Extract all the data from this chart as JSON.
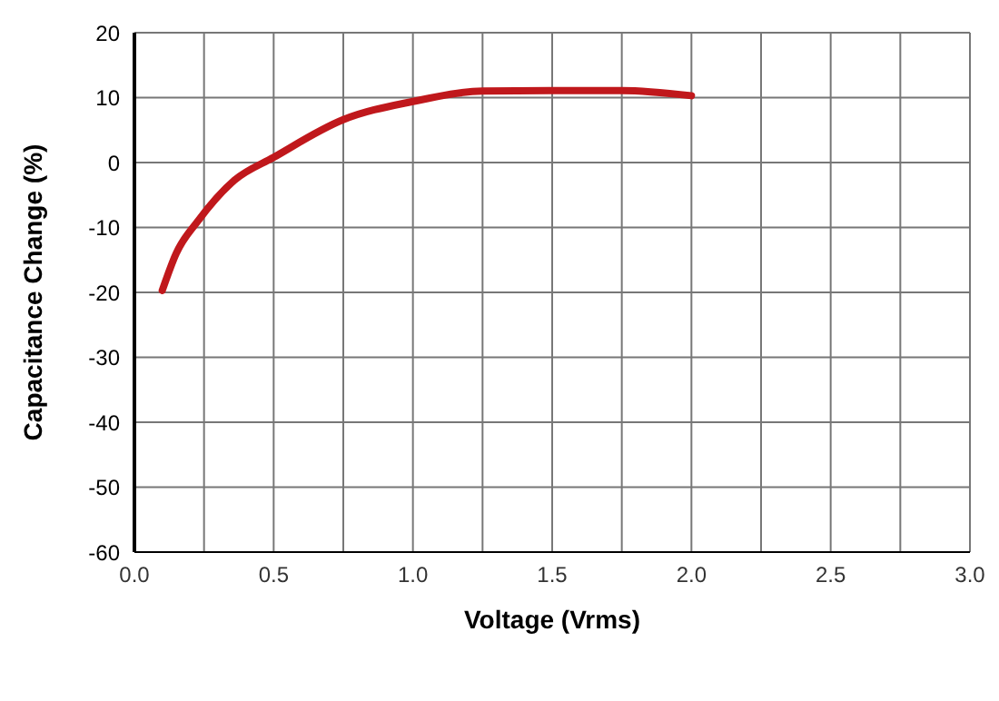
{
  "chart_data": {
    "type": "line",
    "xlabel": "Voltage (Vrms)",
    "ylabel": "Capacitance Change (%)",
    "x": [
      0.1,
      0.15,
      0.23,
      0.36,
      0.5,
      0.75,
      1.0,
      1.25,
      1.5,
      1.75,
      2.0
    ],
    "series": [
      {
        "color": "#c0181c",
        "values": [
          -19.7,
          -14,
          -8.9,
          -2.7,
          0.8,
          6.6,
          9.4,
          11.0,
          11.1,
          11.1,
          10.3
        ]
      }
    ],
    "xlim": [
      0,
      3
    ],
    "xticks": [
      {
        "value": 0,
        "label": "0.0"
      },
      {
        "value": 0.25,
        "label": null
      },
      {
        "value": 0.5,
        "label": "0.5"
      },
      {
        "value": 0.75,
        "label": null
      },
      {
        "value": 1,
        "label": "1.0"
      },
      {
        "value": 1.25,
        "label": null
      },
      {
        "value": 1.5,
        "label": "1.5"
      },
      {
        "value": 1.75,
        "label": null
      },
      {
        "value": 2,
        "label": "2.0"
      },
      {
        "value": 2.25,
        "label": null
      },
      {
        "value": 2.5,
        "label": "2.5"
      },
      {
        "value": 2.75,
        "label": null
      },
      {
        "value": 3,
        "label": "3.0"
      }
    ],
    "ylim": [
      -60,
      20
    ],
    "yticks": [
      -60,
      -50,
      -40,
      -30,
      -20,
      -10,
      0,
      10,
      20
    ],
    "grid": true,
    "marker": "none",
    "line_style": "solid"
  }
}
